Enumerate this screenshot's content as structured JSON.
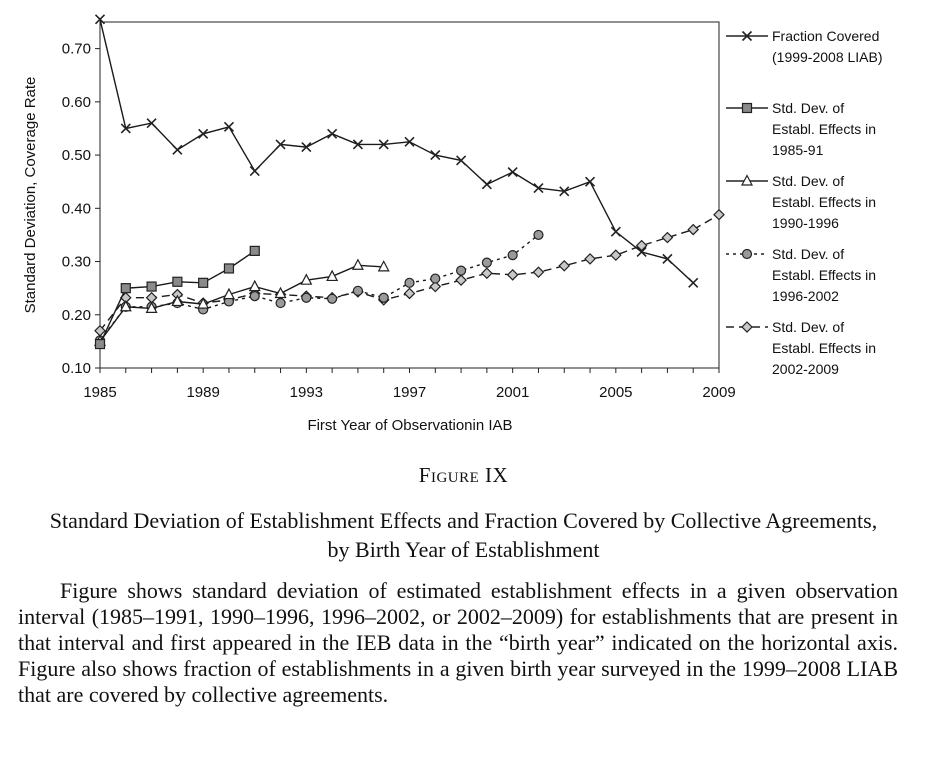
{
  "figure": {
    "label": "Figure IX",
    "title": "Standard Deviation of Establishment Effects and Fraction Covered by Collective Agreements, by Birth Year of Establishment",
    "caption": "Figure shows standard deviation of estimated establishment effects in a given observation interval (1985–1991, 1990–1996, 1996–2002, or 2002–2009) for establishments that are present in that interval and first appeared in the IEB data in the “birth year” indicated on the horizontal axis. Figure also shows fraction of establishments in a given birth year surveyed in the 1999–2008 LIAB that are covered by collective agreements."
  },
  "chart_data": {
    "type": "line",
    "xlabel": "First Year of Observationin IAB",
    "ylabel": "Standard Deviation, Coverage Rate",
    "xlim": [
      1985,
      2009
    ],
    "ylim": [
      0.1,
      0.75
    ],
    "x_ticks": [
      "1985",
      "1989",
      "1993",
      "1997",
      "2001",
      "2005",
      "2009"
    ],
    "y_ticks": [
      "0.10",
      "0.20",
      "0.30",
      "0.40",
      "0.50",
      "0.60",
      "0.70"
    ],
    "legend_position": "right",
    "series": [
      {
        "name": "Fraction Covered (1999-2008 LIAB)",
        "legend_lines": [
          "Fraction Covered",
          "(1999-2008 LIAB)"
        ],
        "marker": "x",
        "dash": "solid",
        "color": "#1a1a1a",
        "x": [
          1985,
          1986,
          1987,
          1988,
          1989,
          1990,
          1991,
          1992,
          1993,
          1994,
          1995,
          1996,
          1997,
          1998,
          1999,
          2000,
          2001,
          2002,
          2003,
          2004,
          2005,
          2006,
          2007,
          2008
        ],
        "values": [
          0.755,
          0.55,
          0.56,
          0.51,
          0.54,
          0.553,
          0.47,
          0.52,
          0.515,
          0.54,
          0.52,
          0.52,
          0.525,
          0.5,
          0.49,
          0.445,
          0.468,
          0.438,
          0.432,
          0.45,
          0.356,
          0.318,
          0.305,
          0.26
        ]
      },
      {
        "name": "Std. Dev. of Establ. Effects in 1985-91",
        "legend_lines": [
          "Std. Dev. of",
          "Establ. Effects in",
          "1985-91"
        ],
        "marker": "square",
        "dash": "solid",
        "color": "#1a1a1a",
        "x": [
          1985,
          1986,
          1987,
          1988,
          1989,
          1990,
          1991
        ],
        "values": [
          0.145,
          0.25,
          0.253,
          0.262,
          0.26,
          0.287,
          0.32
        ]
      },
      {
        "name": "Std. Dev. of Establ. Effects in 1990-1996",
        "legend_lines": [
          "Std. Dev. of",
          "Establ. Effects in",
          "1990-1996"
        ],
        "marker": "triangle",
        "dash": "solid",
        "color": "#1a1a1a",
        "x": [
          1985,
          1986,
          1987,
          1988,
          1989,
          1990,
          1991,
          1992,
          1993,
          1994,
          1995,
          1996
        ],
        "values": [
          0.15,
          0.215,
          0.212,
          0.225,
          0.22,
          0.238,
          0.253,
          0.24,
          0.265,
          0.272,
          0.293,
          0.29
        ]
      },
      {
        "name": "Std. Dev. of Establ. Effects in 1996-2002",
        "legend_lines": [
          "Std. Dev. of",
          "Establ. Effects in",
          "1996-2002"
        ],
        "marker": "circle",
        "dash": "dotted",
        "color": "#1a1a1a",
        "x": [
          1985,
          1986,
          1987,
          1988,
          1989,
          1990,
          1991,
          1992,
          1993,
          1994,
          1995,
          1996,
          1997,
          1998,
          1999,
          2000,
          2001,
          2002
        ],
        "values": [
          0.152,
          0.215,
          0.215,
          0.222,
          0.21,
          0.225,
          0.235,
          0.222,
          0.232,
          0.23,
          0.245,
          0.232,
          0.26,
          0.268,
          0.283,
          0.298,
          0.312,
          0.35
        ]
      },
      {
        "name": "Std. Dev. of Establ. Effects in 2002-2009",
        "legend_lines": [
          "Std. Dev. of",
          "Establ. Effects in",
          "2002-2009"
        ],
        "marker": "diamond",
        "dash": "dashed",
        "color": "#1a1a1a",
        "x": [
          1985,
          1986,
          1987,
          1988,
          1989,
          1990,
          1991,
          1992,
          1993,
          1994,
          1995,
          1996,
          1997,
          1998,
          1999,
          2000,
          2001,
          2002,
          2003,
          2004,
          2005,
          2006,
          2007,
          2008,
          2009
        ],
        "values": [
          0.17,
          0.232,
          0.232,
          0.238,
          0.222,
          0.228,
          0.24,
          0.238,
          0.235,
          0.232,
          0.243,
          0.228,
          0.24,
          0.253,
          0.265,
          0.278,
          0.275,
          0.28,
          0.292,
          0.305,
          0.312,
          0.33,
          0.345,
          0.36,
          0.388
        ]
      }
    ]
  }
}
